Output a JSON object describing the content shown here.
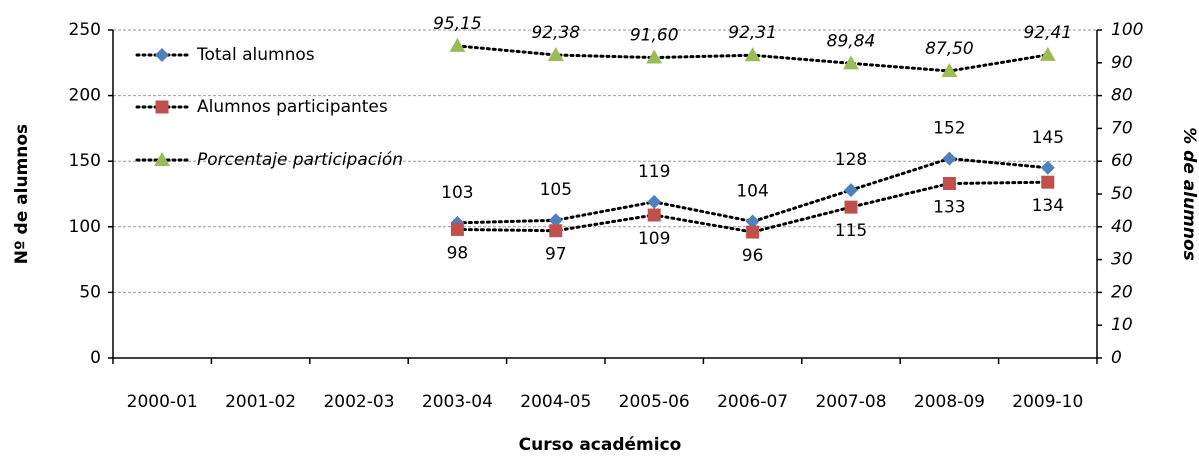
{
  "chart_data": {
    "type": "line",
    "x_label": "Curso académico",
    "y_label": "Nº de alumnos",
    "y2_label": "% de alumnos",
    "categories": [
      "2000-01",
      "2001-02",
      "2002-03",
      "2003-04",
      "2004-05",
      "2005-06",
      "2006-07",
      "2007-08",
      "2008-09",
      "2009-10"
    ],
    "series": [
      {
        "name": "Total alumnos",
        "color": "#4f81bd",
        "marker": "diamond",
        "values": [
          null,
          null,
          null,
          103,
          105,
          119,
          104,
          128,
          152,
          145
        ]
      },
      {
        "name": "Alumnos participantes",
        "color": "#c0504d",
        "marker": "square",
        "values": [
          null,
          null,
          null,
          98,
          97,
          109,
          96,
          115,
          133,
          134
        ]
      },
      {
        "name": "Porcentaje participación",
        "color": "#9bbb59",
        "marker": "triangle",
        "axis": "y2",
        "values": [
          null,
          null,
          null,
          95.15,
          92.38,
          91.6,
          92.31,
          89.84,
          87.5,
          92.41
        ],
        "value_labels": [
          null,
          null,
          null,
          "95,15",
          "92,38",
          "91,60",
          "92,31",
          "89,84",
          "87,50",
          "92,41"
        ]
      }
    ],
    "ylim": [
      0,
      250
    ],
    "yticks": [
      0,
      50,
      100,
      150,
      200,
      250
    ],
    "y2lim": [
      0,
      100
    ],
    "y2ticks": [
      0,
      10,
      20,
      30,
      40,
      50,
      60,
      70,
      80,
      90,
      100
    ],
    "grid": true,
    "legend": "upper left"
  }
}
